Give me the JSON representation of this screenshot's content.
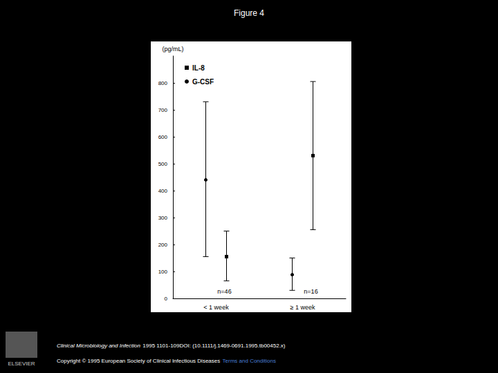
{
  "chart_data": {
    "type": "scatter",
    "title": "Figure 4",
    "y_label": "(pg/mL)",
    "categories": [
      "< 1 week",
      "≥ 1 week"
    ],
    "series": [
      {
        "name": "IL-8",
        "color": "#000000",
        "marker": "square",
        "values": [
          155,
          530
        ],
        "error_low": [
          65,
          255
        ],
        "error_high": [
          250,
          805
        ]
      },
      {
        "name": "G-CSF",
        "color": "#000000",
        "marker": "circle",
        "values": [
          440,
          88
        ],
        "error_low": [
          155,
          30
        ],
        "error_high": [
          730,
          150
        ]
      }
    ],
    "ylim": [
      0,
      900
    ],
    "yticks": [
      0,
      100,
      200,
      300,
      400,
      500,
      600,
      700,
      800
    ],
    "grid": false,
    "legend": "upper left",
    "annotations": [
      {
        "category": "< 1 week",
        "text": "n=46"
      },
      {
        "category": "≥ 1 week",
        "text": "n=16"
      }
    ]
  },
  "footer": {
    "citation_journal": "Clinical Microbiology and Infection",
    "citation_rest": "1995 1101-109DOI: (10.1111/j.1469-0691.1995.tb00452.x)",
    "copyright": "Copyright © 1995 European Society of Clinical Infectious Diseases",
    "link": "Terms and Conditions",
    "publisher": "ELSEVIER"
  }
}
